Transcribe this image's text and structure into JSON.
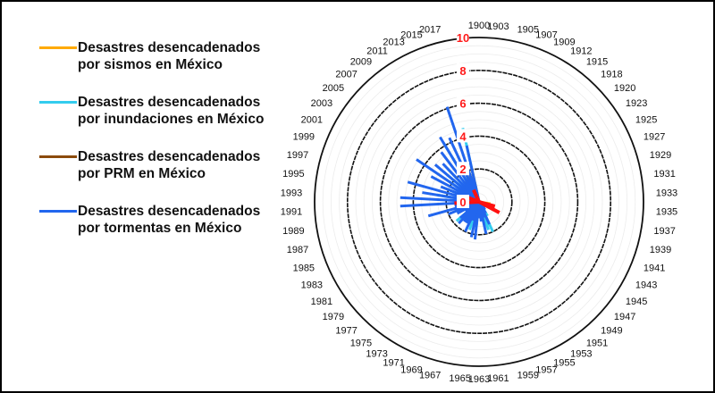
{
  "chart_data": {
    "type": "radial-bar",
    "title": "",
    "categories": [
      "1900",
      "1903",
      "1905",
      "1907",
      "1909",
      "1912",
      "1915",
      "1918",
      "1920",
      "1923",
      "1925",
      "1927",
      "1929",
      "1931",
      "1933",
      "1935",
      "1937",
      "1939",
      "1941",
      "1943",
      "1945",
      "1947",
      "1949",
      "1951",
      "1953",
      "1955",
      "1957",
      "1959",
      "1961",
      "1963",
      "1965",
      "1967",
      "1969",
      "1971",
      "1973",
      "1975",
      "1977",
      "1979",
      "1981",
      "1983",
      "1985",
      "1987",
      "1989",
      "1991",
      "1993",
      "1995",
      "1997",
      "1999",
      "2001",
      "2003",
      "2005",
      "2007",
      "2009",
      "2011",
      "2013",
      "2015",
      "2017"
    ],
    "radial_ticks": [
      "0",
      "2",
      "4",
      "6",
      "8",
      "10"
    ],
    "rlim": [
      0,
      10
    ],
    "legend_position": "left",
    "series": [
      {
        "name": "Desastres desencadenados por inundaciones en México",
        "color": "#33ccee",
        "values": {
          "2017": 4.6,
          "2013": 2.5,
          "2011": 4.2,
          "2007": 2.8,
          "2005": 2.5,
          "2003": 2.2,
          "1999": 2.0,
          "1995": 2.6,
          "1989": 1.2,
          "1985": 1.5,
          "1979": 1.8,
          "1975": 1.0,
          "1969": 1.8,
          "1965": 1.5,
          "1957": 1.8,
          "1955": 2.0,
          "1953": 1.0
        }
      },
      {
        "name": "Desastres desencadenados por sismos en México",
        "color": "#ffaa00",
        "values": {
          "2017": 2.2,
          "1999": 1.5,
          "1995": 1.0,
          "1985": 1.0,
          "1957": 0.8,
          "1941": 1.0,
          "1937": 0.7
        }
      },
      {
        "name": "Desastres desencadenados por PRM en México",
        "color": "#8b4a0a",
        "values": {
          "2015": 2.5,
          "2013": 2.0,
          "2011": 1.5,
          "2005": 1.2,
          "1999": 1.0
        }
      },
      {
        "name": "Desastres desencadenados por tormentas en México",
        "color": "#2266ee",
        "values": {
          "2017": 3.5,
          "2015": 6.1,
          "2013": 4.3,
          "2011": 4.6,
          "2009": 3.8,
          "2007": 3.2,
          "2005": 3.5,
          "2003": 4.6,
          "2001": 3.3,
          "1999": 2.5,
          "1997": 4.5,
          "1995": 3.5,
          "1993": 4.8,
          "1991": 4.8,
          "1989": 1.5,
          "1987": 3.2,
          "1985": 2.0,
          "1983": 1.5,
          "1981": 1.0,
          "1979": 1.5,
          "1977": 1.8,
          "1975": 1.5,
          "1973": 1.5,
          "1971": 2.0,
          "1969": 1.2,
          "1967": 2.2,
          "1965": 2.3,
          "1963": 1.0,
          "1961": 1.2,
          "1959": 2.0,
          "1957": 1.0,
          "1955": 1.5,
          "1953": 0.8,
          "1951": 0.6,
          "1949": 0.5
        }
      },
      {
        "name": "",
        "color": "#ff1010",
        "values": {
          "2013": 0.8,
          "1999": 0.8,
          "1991": 1.5,
          "1943": 1.4,
          "1939": 1.0
        }
      }
    ]
  }
}
